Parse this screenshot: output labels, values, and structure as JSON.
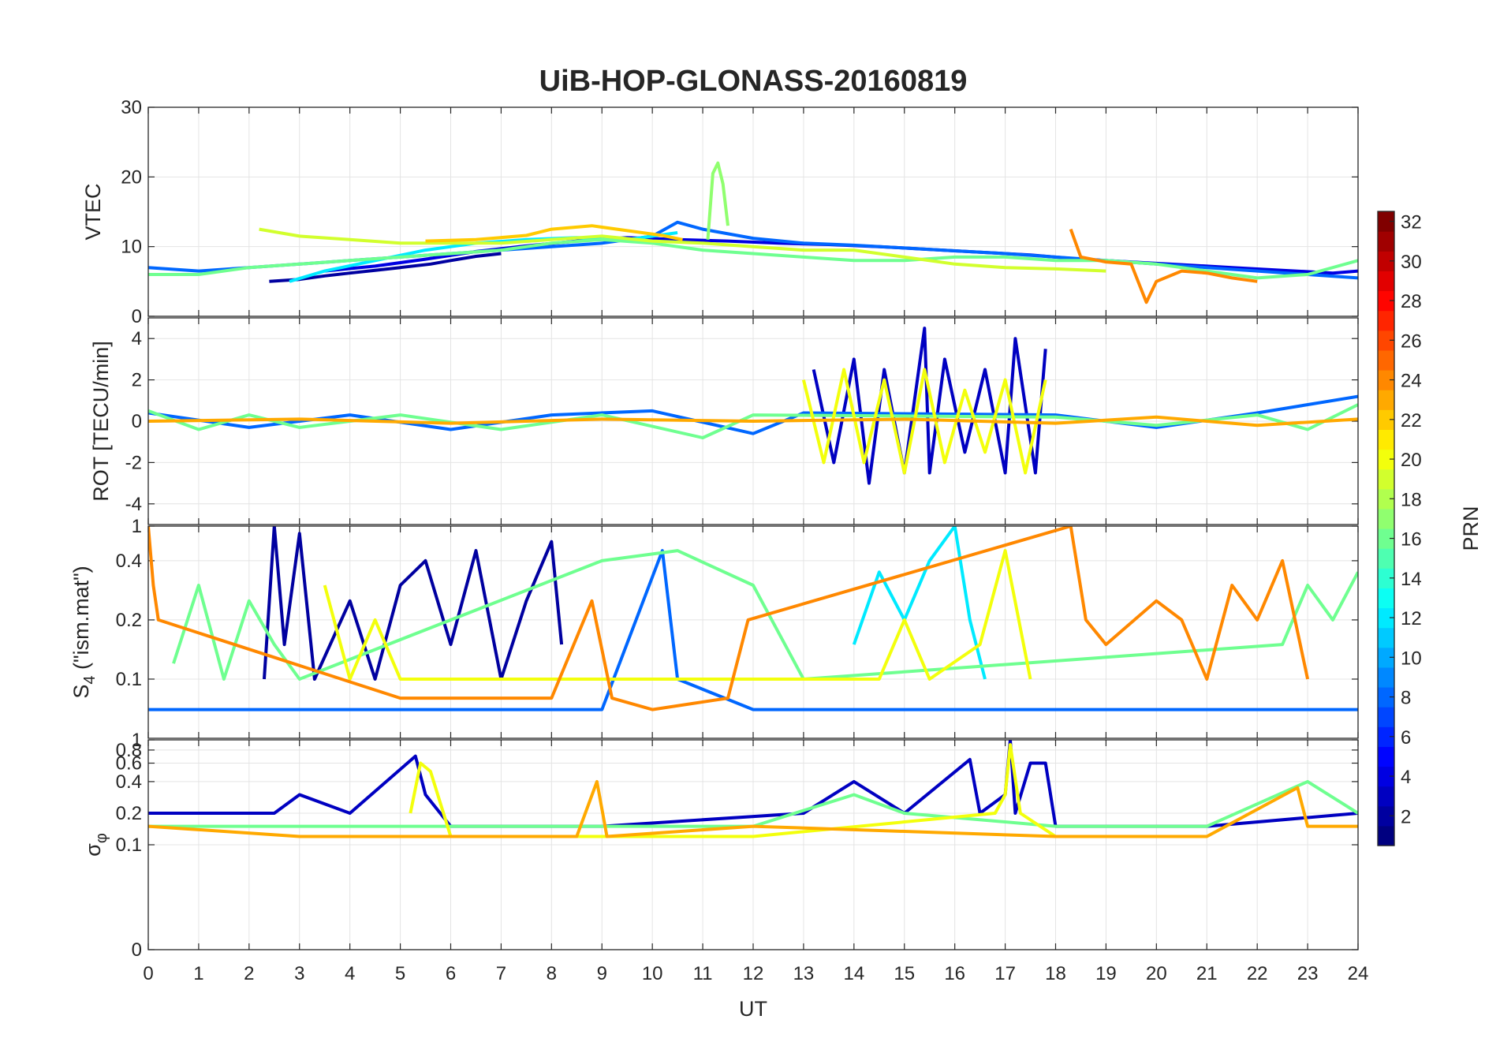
{
  "chart_data": {
    "type": "line",
    "title": "UiB-HOP-GLONASS-20160819",
    "xlabel": "UT",
    "xlim": [
      0,
      24
    ],
    "xticks": [
      "0",
      "1",
      "2",
      "3",
      "4",
      "5",
      "6",
      "7",
      "8",
      "9",
      "10",
      "11",
      "12",
      "13",
      "14",
      "15",
      "16",
      "17",
      "18",
      "19",
      "20",
      "21",
      "22",
      "23",
      "24"
    ],
    "panels": [
      {
        "ylabel": "VTEC",
        "ylim": [
          0,
          30
        ],
        "yticks": [
          "0",
          "10",
          "20",
          "30"
        ],
        "series": [
          {
            "prn": 2,
            "x": [
              2.4,
              3.0,
              3.5,
              4.0,
              4.5,
              5.0,
              5.6,
              6.0,
              6.5,
              7.0
            ],
            "values": [
              5.0,
              5.3,
              5.8,
              6.2,
              6.6,
              7.0,
              7.5,
              8.0,
              8.6,
              9.0
            ]
          },
          {
            "prn": 4,
            "x": [
              3.5,
              4.5,
              5.5,
              6.5,
              7.5,
              8.5,
              9.5,
              10.5,
              11.5,
              12.5,
              13.5,
              14.5,
              15.5,
              16.5,
              17.5,
              18.5,
              19.5,
              20.5,
              21.5,
              22.5,
              23.5,
              24.0
            ],
            "values": [
              6.5,
              7.2,
              8.2,
              9.3,
              10.1,
              10.8,
              11.3,
              11.0,
              10.8,
              10.5,
              10.3,
              10.0,
              9.6,
              9.2,
              8.8,
              8.2,
              7.8,
              7.4,
              7.0,
              6.6,
              6.2,
              6.5
            ]
          },
          {
            "prn": 8,
            "x": [
              0.0,
              1.0,
              2.0,
              3.0,
              4.0,
              5.0,
              6.0,
              7.0,
              8.0,
              9.0,
              10.0,
              10.5,
              11.0,
              12.0,
              13.0,
              14.0,
              15.0,
              16.0,
              17.0,
              18.0,
              19.0,
              20.0,
              21.0,
              22.0,
              23.0,
              24.0
            ],
            "values": [
              7.0,
              6.5,
              7.0,
              7.5,
              8.0,
              8.5,
              9.0,
              9.5,
              10.0,
              10.5,
              11.5,
              13.5,
              12.5,
              11.2,
              10.5,
              10.2,
              9.8,
              9.4,
              9.0,
              8.5,
              8.0,
              7.5,
              7.0,
              6.5,
              6.0,
              5.5
            ]
          },
          {
            "prn": 12,
            "x": [
              2.8,
              3.5,
              4.5,
              5.5,
              6.5,
              7.5,
              8.5,
              9.5,
              10.5
            ],
            "values": [
              5.0,
              6.5,
              8.0,
              9.5,
              10.5,
              11.0,
              11.3,
              11.0,
              12.0
            ]
          },
          {
            "prn": 16,
            "x": [
              0.0,
              1.0,
              2.0,
              3.0,
              4.0,
              5.0,
              6.0,
              7.0,
              8.0,
              9.0,
              10.0,
              11.0,
              12.0,
              13.0,
              14.0,
              15.0,
              16.0,
              17.0,
              18.0,
              19.0,
              20.0,
              21.0,
              22.0,
              23.0,
              24.0
            ],
            "values": [
              6.0,
              6.0,
              7.0,
              7.5,
              8.0,
              8.5,
              9.0,
              9.5,
              10.5,
              11.0,
              10.5,
              9.5,
              9.0,
              8.5,
              8.0,
              8.0,
              8.5,
              8.5,
              8.0,
              8.0,
              7.5,
              6.5,
              5.5,
              6.0,
              8.0
            ]
          },
          {
            "prn": 17,
            "x": [
              11.1,
              11.2,
              11.3,
              11.4,
              11.5
            ],
            "values": [
              11.0,
              20.5,
              22.0,
              19.0,
              13.0
            ]
          },
          {
            "prn": 19,
            "x": [
              2.2,
              3.0,
              4.0,
              5.0,
              6.0,
              7.0,
              8.0,
              9.0,
              10.0,
              11.0,
              12.0,
              13.0,
              14.0,
              15.0,
              16.0,
              17.0,
              18.0,
              19.0
            ],
            "values": [
              12.5,
              11.5,
              11.0,
              10.5,
              10.5,
              10.5,
              11.0,
              11.5,
              10.8,
              10.5,
              10.0,
              9.5,
              9.5,
              8.5,
              7.5,
              7.0,
              6.8,
              6.5
            ]
          },
          {
            "prn": 22,
            "x": [
              5.5,
              6.5,
              7.5,
              8.0,
              8.8,
              9.5,
              10.2,
              10.6
            ],
            "values": [
              10.8,
              11.0,
              11.6,
              12.5,
              13.0,
              12.3,
              11.6,
              11.0
            ]
          },
          {
            "prn": 24,
            "x": [
              18.3,
              18.5,
              19.0,
              19.5,
              19.8,
              20.0,
              20.5,
              21.0,
              21.5,
              22.0
            ],
            "values": [
              12.5,
              8.5,
              7.8,
              7.5,
              2.0,
              5.0,
              6.5,
              6.2,
              5.5,
              5.0
            ]
          }
        ]
      },
      {
        "ylabel": "ROT [TECU/min]",
        "ylim": [
          -5,
          5
        ],
        "yticks": [
          "-4",
          "-2",
          "0",
          "2",
          "4"
        ],
        "series": [
          {
            "prn": 3,
            "x": [
              13.2,
              13.6,
              14.0,
              14.3,
              14.6,
              15.0,
              15.4,
              15.5,
              15.8,
              16.2,
              16.6,
              17.0,
              17.2,
              17.6,
              17.8
            ],
            "values": [
              2.5,
              -2.0,
              3.0,
              -3.0,
              2.5,
              -2.5,
              4.5,
              -2.5,
              3.0,
              -1.5,
              2.5,
              -2.5,
              4.0,
              -2.5,
              3.5
            ]
          },
          {
            "prn": 8,
            "x": [
              0.0,
              2.0,
              4.0,
              6.0,
              8.0,
              10.0,
              12.0,
              13.0,
              18.0,
              20.0,
              22.0,
              24.0
            ],
            "values": [
              0.4,
              -0.3,
              0.3,
              -0.4,
              0.3,
              0.5,
              -0.6,
              0.4,
              0.3,
              -0.3,
              0.4,
              1.2
            ]
          },
          {
            "prn": 16,
            "x": [
              0.0,
              1.0,
              2.0,
              3.0,
              5.0,
              7.0,
              9.0,
              11.0,
              12.0,
              18.0,
              20.0,
              22.0,
              23.0,
              24.0
            ],
            "values": [
              0.5,
              -0.4,
              0.3,
              -0.3,
              0.3,
              -0.4,
              0.3,
              -0.8,
              0.3,
              0.2,
              -0.2,
              0.3,
              -0.4,
              0.8
            ]
          },
          {
            "prn": 20,
            "x": [
              13.0,
              13.4,
              13.8,
              14.2,
              14.6,
              15.0,
              15.4,
              15.8,
              16.2,
              16.6,
              17.0,
              17.4,
              17.8
            ],
            "values": [
              2.0,
              -2.0,
              2.5,
              -2.0,
              2.0,
              -2.5,
              2.5,
              -2.0,
              1.5,
              -1.5,
              2.0,
              -2.5,
              2.0
            ]
          },
          {
            "prn": 23,
            "x": [
              0.0,
              3.0,
              6.0,
              9.0,
              12.0,
              15.0,
              18.0,
              20.0,
              22.0,
              24.0
            ],
            "values": [
              0.0,
              0.1,
              -0.1,
              0.1,
              0.0,
              0.1,
              -0.1,
              0.2,
              -0.2,
              0.1
            ]
          }
        ]
      },
      {
        "ylabel": "S_4 (\"ism.mat\")",
        "ylabel_main": "S",
        "ylabel_sub": "4",
        "ylabel_rest": " (\"ism.mat\")",
        "ylim": [
          0.05,
          0.6
        ],
        "yscale": "log",
        "yticks": [
          "0.1",
          "0.2",
          "0.4",
          "1"
        ],
        "series": [
          {
            "prn": 2,
            "x": [
              2.3,
              2.5,
              2.7,
              3.0,
              3.3,
              4.0,
              4.5,
              5.0,
              5.5,
              6.0,
              6.5,
              7.0,
              7.5,
              8.0,
              8.2
            ],
            "values": [
              0.1,
              0.6,
              0.15,
              0.55,
              0.1,
              0.25,
              0.1,
              0.3,
              0.4,
              0.15,
              0.45,
              0.1,
              0.25,
              0.5,
              0.15
            ]
          },
          {
            "prn": 8,
            "x": [
              0.0,
              3.0,
              6.0,
              9.0,
              10.2,
              10.5,
              12.0,
              15.0,
              18.0,
              21.0,
              24.0
            ],
            "values": [
              0.07,
              0.07,
              0.07,
              0.07,
              0.45,
              0.1,
              0.07,
              0.07,
              0.07,
              0.07,
              0.07
            ]
          },
          {
            "prn": 12,
            "x": [
              14.0,
              14.5,
              15.0,
              15.5,
              16.0,
              16.3,
              16.6
            ],
            "values": [
              0.15,
              0.35,
              0.2,
              0.4,
              0.6,
              0.2,
              0.1
            ]
          },
          {
            "prn": 16,
            "x": [
              0.5,
              1.0,
              1.5,
              2.0,
              2.5,
              3.0,
              9.0,
              10.5,
              12.0,
              13.0,
              22.5,
              23.0,
              23.5,
              24.0
            ],
            "values": [
              0.12,
              0.3,
              0.1,
              0.25,
              0.15,
              0.1,
              0.4,
              0.45,
              0.3,
              0.1,
              0.15,
              0.3,
              0.2,
              0.35
            ]
          },
          {
            "prn": 20,
            "x": [
              3.5,
              4.0,
              4.5,
              5.0,
              14.5,
              15.0,
              15.5,
              16.5,
              17.0,
              17.5
            ],
            "values": [
              0.3,
              0.1,
              0.2,
              0.1,
              0.1,
              0.2,
              0.1,
              0.15,
              0.45,
              0.1
            ]
          },
          {
            "prn": 24,
            "x": [
              0.0,
              0.1,
              0.2,
              5.0,
              6.0,
              8.0,
              8.8,
              9.2,
              10.0,
              11.5,
              11.9,
              18.3,
              18.6,
              19.0,
              20.0,
              20.5,
              21.0,
              21.5,
              22.0,
              22.5,
              23.0
            ],
            "values": [
              0.6,
              0.3,
              0.2,
              0.08,
              0.08,
              0.08,
              0.25,
              0.08,
              0.07,
              0.08,
              0.2,
              0.6,
              0.2,
              0.15,
              0.25,
              0.2,
              0.1,
              0.3,
              0.2,
              0.4,
              0.1
            ]
          }
        ]
      },
      {
        "ylabel": "σ_φ",
        "ylabel_main": "σ",
        "ylabel_sub": "φ",
        "ylim": [
          0,
          1
        ],
        "yscale": "log",
        "yticks": [
          "0",
          "0.1",
          "0.2",
          "0.4",
          "0.6",
          "0.8",
          "1"
        ],
        "series": [
          {
            "prn": 3,
            "x": [
              0.0,
              2.5,
              3.0,
              4.0,
              5.3,
              5.5,
              6.0,
              9.0,
              13.0,
              14.0,
              15.0,
              16.3,
              16.5,
              17.0,
              17.1,
              17.2,
              17.5,
              17.8,
              18.0,
              21.0,
              24.0
            ],
            "values": [
              0.2,
              0.2,
              0.3,
              0.2,
              0.7,
              0.3,
              0.15,
              0.15,
              0.2,
              0.4,
              0.2,
              0.65,
              0.2,
              0.3,
              1.0,
              0.2,
              0.6,
              0.6,
              0.15,
              0.15,
              0.2
            ]
          },
          {
            "prn": 16,
            "x": [
              0.0,
              3.0,
              6.0,
              9.0,
              12.0,
              14.0,
              15.0,
              18.0,
              21.0,
              23.0,
              24.0
            ],
            "values": [
              0.15,
              0.15,
              0.15,
              0.15,
              0.15,
              0.3,
              0.2,
              0.15,
              0.15,
              0.4,
              0.2
            ]
          },
          {
            "prn": 20,
            "x": [
              5.2,
              5.4,
              5.6,
              6.0,
              12.0,
              16.8,
              17.0,
              17.1,
              17.3,
              18.0
            ],
            "values": [
              0.2,
              0.6,
              0.5,
              0.12,
              0.12,
              0.2,
              0.3,
              0.9,
              0.2,
              0.12
            ]
          },
          {
            "prn": 23,
            "x": [
              0.0,
              3.0,
              6.0,
              8.5,
              8.9,
              9.1,
              12.0,
              18.0,
              21.0,
              22.8,
              23.0,
              24.0
            ],
            "values": [
              0.15,
              0.12,
              0.12,
              0.12,
              0.4,
              0.12,
              0.15,
              0.12,
              0.12,
              0.35,
              0.15,
              0.15
            ]
          }
        ]
      }
    ],
    "colorbar": {
      "label": "PRN",
      "range": [
        1,
        32
      ],
      "ticks": [
        "2",
        "4",
        "6",
        "8",
        "10",
        "12",
        "14",
        "16",
        "18",
        "20",
        "22",
        "24",
        "26",
        "28",
        "30",
        "32"
      ],
      "colormap": "jet"
    }
  }
}
